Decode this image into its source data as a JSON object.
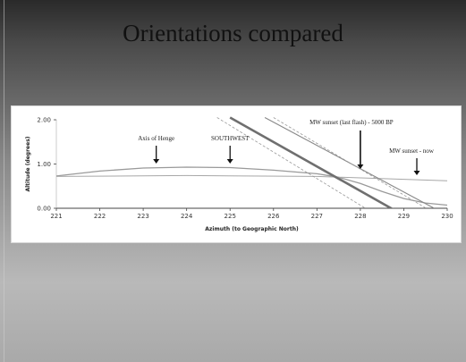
{
  "slide": {
    "title": "Orientations compared"
  },
  "chart_data": {
    "type": "line",
    "title": "",
    "xlabel": "Azimuth (to Geographic North)",
    "ylabel": "Altitude (degrees)",
    "xlim": [
      221,
      230
    ],
    "ylim": [
      0,
      2
    ],
    "xticks": [
      "221",
      "222",
      "223",
      "224",
      "225",
      "226",
      "227",
      "228",
      "229",
      "230"
    ],
    "yticks": [
      "0.00",
      "1.00",
      "2.00"
    ],
    "grid": false,
    "series": [
      {
        "style": "horizon",
        "x": [
          221.0,
          222.0,
          223.0,
          224.0,
          225.0,
          226.0,
          227.0,
          227.5,
          228.0,
          228.5,
          229.0,
          229.5,
          230.0
        ],
        "y": [
          0.73,
          0.84,
          0.91,
          0.93,
          0.92,
          0.86,
          0.78,
          0.7,
          0.56,
          0.38,
          0.22,
          0.12,
          0.07
        ]
      },
      {
        "style": "flat",
        "x": [
          221.0,
          224.0,
          227.0,
          230.0
        ],
        "y": [
          0.72,
          0.74,
          0.72,
          0.62
        ]
      },
      {
        "style": "thick",
        "x": [
          225.0,
          228.8
        ],
        "y": [
          2.05,
          -0.05
        ]
      },
      {
        "style": "thin",
        "x": [
          225.8,
          229.7
        ],
        "y": [
          2.05,
          0.0
        ]
      },
      {
        "style": "dashed",
        "x": [
          224.7,
          228.2
        ],
        "y": [
          2.05,
          -0.05
        ]
      },
      {
        "style": "dashed",
        "x": [
          226.0,
          229.6
        ],
        "y": [
          2.05,
          -0.05
        ]
      }
    ],
    "annotations": [
      {
        "label": "Axis of Henge",
        "x": 223.3
      },
      {
        "label": "SOUTHWEST",
        "x": 225.0
      },
      {
        "label": "MW sunset (last flash) - 5000 BP",
        "x": 228.0
      },
      {
        "label": "MW sunset - now",
        "x": 229.3
      }
    ]
  }
}
